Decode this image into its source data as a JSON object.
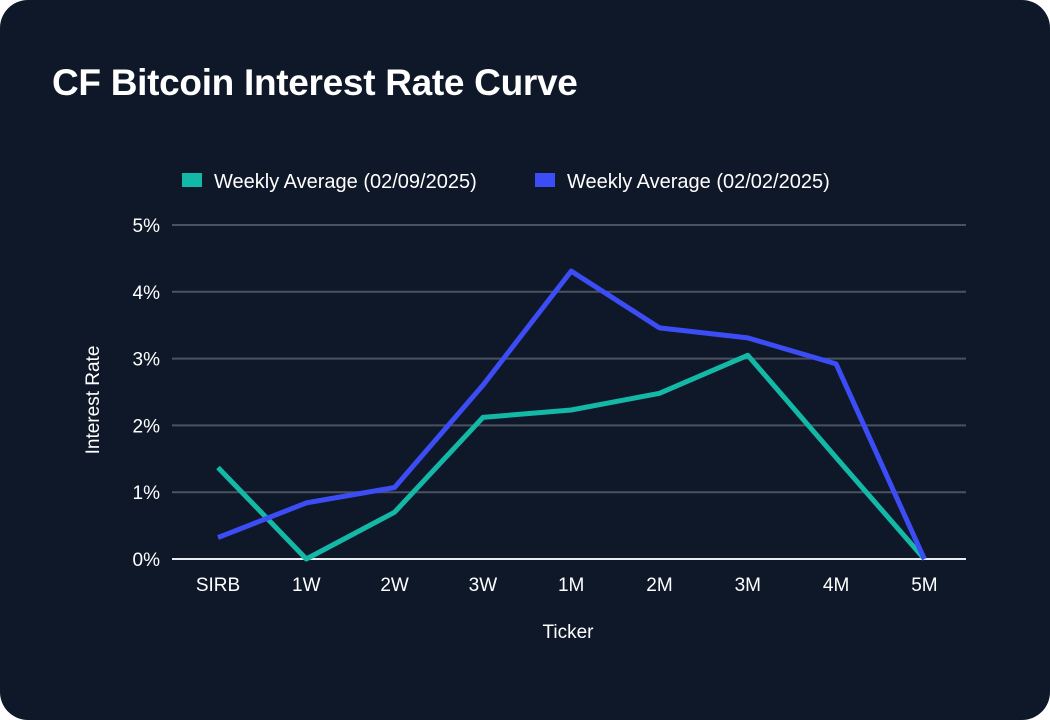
{
  "chart_data": {
    "type": "line",
    "title": "CF Bitcoin Interest Rate Curve",
    "xlabel": "Ticker",
    "ylabel": "Interest Rate",
    "categories": [
      "SIRB",
      "1W",
      "2W",
      "3W",
      "1M",
      "2M",
      "3M",
      "4M",
      "5M"
    ],
    "ylim": [
      0,
      5
    ],
    "yticks": [
      0,
      1,
      2,
      3,
      4,
      5
    ],
    "ytick_labels": [
      "0%",
      "1%",
      "2%",
      "3%",
      "4%",
      "5%"
    ],
    "grid": true,
    "legend_position": "top-center",
    "series": [
      {
        "name": "Weekly Average (02/09/2025)",
        "color": "#14b8a6",
        "values": [
          1.37,
          0.0,
          0.7,
          2.12,
          2.23,
          2.48,
          3.05,
          1.52,
          0.0
        ]
      },
      {
        "name": "Weekly Average (02/02/2025)",
        "color": "#3d4df5",
        "values": [
          0.32,
          0.84,
          1.07,
          2.6,
          4.31,
          3.46,
          3.31,
          2.92,
          0.0
        ]
      }
    ]
  }
}
